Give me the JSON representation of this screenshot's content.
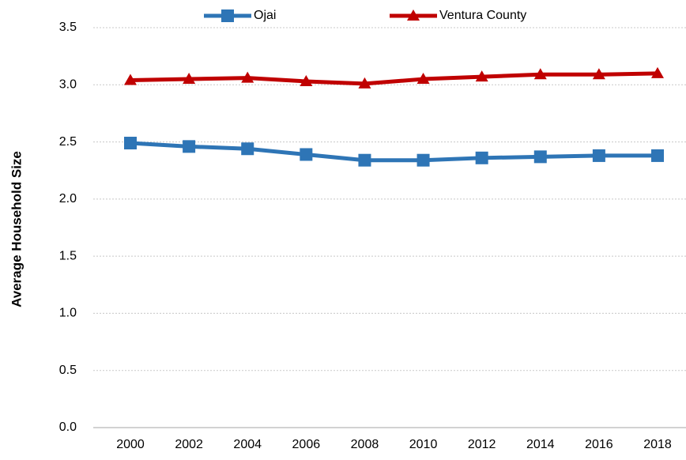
{
  "chart_data": {
    "type": "line",
    "y_label": "Average Household Size",
    "categories": [
      "2000",
      "2002",
      "2004",
      "2006",
      "2008",
      "2010",
      "2012",
      "2014",
      "2016",
      "2018"
    ],
    "series": [
      {
        "name": "Ojai",
        "color": "#2e75b6",
        "marker": "square",
        "values": [
          2.49,
          2.46,
          2.44,
          2.39,
          2.34,
          2.34,
          2.36,
          2.37,
          2.38,
          2.38
        ]
      },
      {
        "name": "Ventura County",
        "color": "#c00000",
        "marker": "triangle",
        "values": [
          3.04,
          3.05,
          3.06,
          3.03,
          3.01,
          3.05,
          3.07,
          3.09,
          3.09,
          3.1
        ]
      }
    ],
    "ylim": [
      0,
      3.5
    ],
    "yticks": [
      {
        "value": 0,
        "label": "0.0"
      },
      0.5,
      {
        "value": 1,
        "label": "1.0"
      },
      1.5,
      {
        "value": 2,
        "label": "2.0"
      },
      2.5,
      {
        "value": 3,
        "label": "3.0"
      },
      3.5
    ],
    "grid": true,
    "legend": "top"
  }
}
